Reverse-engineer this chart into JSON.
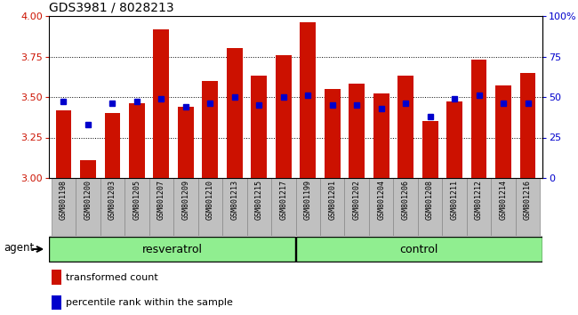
{
  "title": "GDS3981 / 8028213",
  "samples": [
    "GSM801198",
    "GSM801200",
    "GSM801203",
    "GSM801205",
    "GSM801207",
    "GSM801209",
    "GSM801210",
    "GSM801213",
    "GSM801215",
    "GSM801217",
    "GSM801199",
    "GSM801201",
    "GSM801202",
    "GSM801204",
    "GSM801206",
    "GSM801208",
    "GSM801211",
    "GSM801212",
    "GSM801214",
    "GSM801216"
  ],
  "transformed_counts": [
    3.42,
    3.11,
    3.4,
    3.46,
    3.92,
    3.44,
    3.6,
    3.8,
    3.63,
    3.76,
    3.96,
    3.55,
    3.58,
    3.52,
    3.63,
    3.35,
    3.47,
    3.73,
    3.57,
    3.65
  ],
  "percentile_ranks": [
    47,
    33,
    46,
    47,
    49,
    44,
    46,
    50,
    45,
    50,
    51,
    45,
    45,
    43,
    46,
    38,
    49,
    51,
    46,
    46
  ],
  "bar_color": "#CC1100",
  "dot_color": "#0000CC",
  "group_fill": "#90EE90",
  "tick_box_fill": "#C0C0C0",
  "tick_box_edge": "#888888",
  "ylim_left": [
    3.0,
    4.0
  ],
  "ylim_right": [
    0,
    100
  ],
  "yticks_left": [
    3.0,
    3.25,
    3.5,
    3.75,
    4.0
  ],
  "yticks_right": [
    0,
    25,
    50,
    75,
    100
  ],
  "bar_width": 0.65,
  "resv_count": 10,
  "ctrl_count": 10,
  "agent_label": "agent",
  "resv_label": "resveratrol",
  "ctrl_label": "control",
  "legend_red": "transformed count",
  "legend_blue": "percentile rank within the sample"
}
